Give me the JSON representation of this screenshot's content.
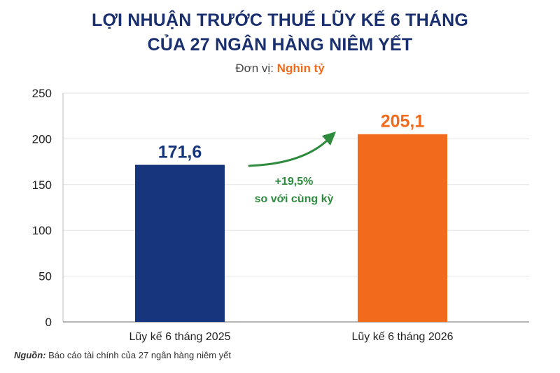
{
  "title_line1": "LỢI NHUẬN TRƯỚC THUẾ LŨY KẾ 6 THÁNG",
  "title_line2": "CỦA 27 NGÂN HÀNG NIÊM YẾT",
  "unit_label": "Đơn vị:",
  "unit_value": "Nghìn tỷ",
  "source_label": "Nguồn:",
  "source_text": "Báo cáo tài chính của 27 ngân hàng niêm yết",
  "colors": {
    "title": "#1a2f6e",
    "accent": "#f26a1b",
    "bar_2025": "#16357c",
    "bar_2026": "#f26a1b",
    "growth": "#2e8b3e",
    "axis_text": "#222222",
    "grid": "#e3e3e3"
  },
  "chart_data": {
    "type": "bar",
    "categories": [
      "Lũy kế 6 tháng 2025",
      "Lũy kế 6 tháng 2026"
    ],
    "values": [
      171.6,
      205.1
    ],
    "data_labels": [
      "171,6",
      "205,1"
    ],
    "ylim": [
      0,
      250
    ],
    "yticks": [
      0,
      50,
      100,
      150,
      200,
      250
    ],
    "grid": true,
    "annotation": {
      "line1": "+19,5%",
      "line2": "so với cùng kỳ"
    }
  }
}
